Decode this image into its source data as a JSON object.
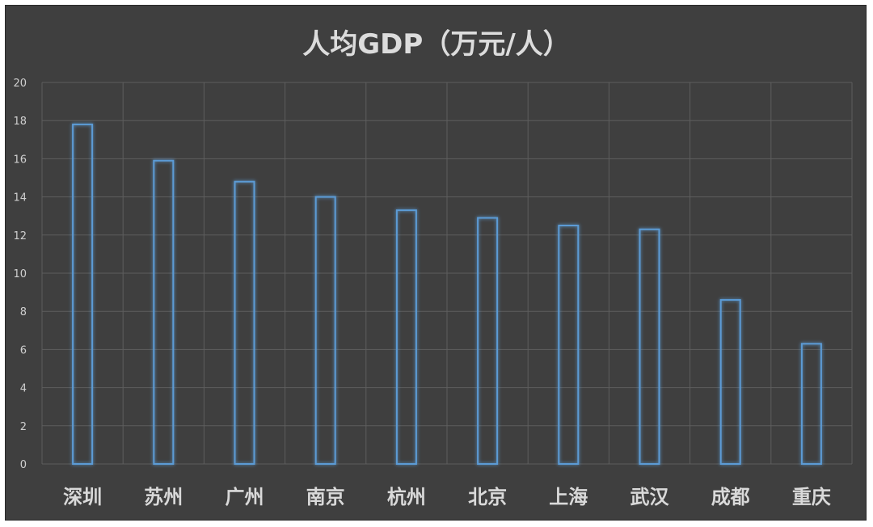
{
  "chart_data": {
    "type": "bar",
    "title": "人均GDP（万元/人）",
    "categories": [
      "深圳",
      "苏州",
      "广州",
      "南京",
      "杭州",
      "北京",
      "上海",
      "武汉",
      "成都",
      "重庆"
    ],
    "values": [
      17.8,
      15.9,
      14.8,
      14.0,
      13.3,
      12.9,
      12.5,
      12.3,
      8.6,
      6.3
    ],
    "xlabel": "",
    "ylabel": "",
    "ylim": [
      0,
      20
    ],
    "yticks": [
      "0",
      "2",
      "4",
      "6",
      "8",
      "10",
      "12",
      "14",
      "16",
      "18",
      "20"
    ],
    "grid": true,
    "legend": "none",
    "colors": {
      "background": "#3f3f3f",
      "bar_outline": "#5b9bd5",
      "grid": "#5e5e5e",
      "text": "#d9d9d9"
    }
  }
}
